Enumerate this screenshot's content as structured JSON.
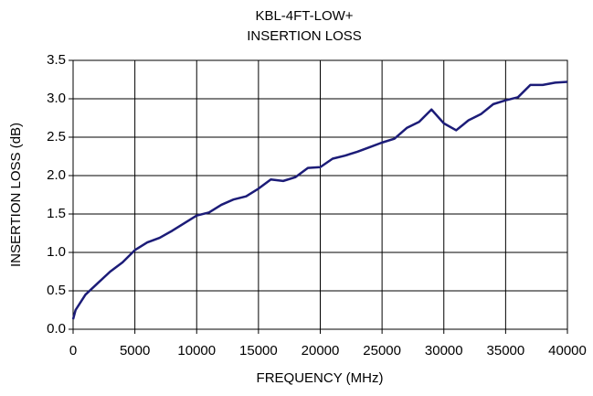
{
  "chart_data": {
    "type": "line",
    "title": "KBL-4FT-LOW+",
    "subtitle": "INSERTION LOSS",
    "xlabel": "FREQUENCY (MHz)",
    "ylabel": "INSERTION LOSS (dB)",
    "x": [
      0,
      200,
      1000,
      2000,
      3000,
      4000,
      5000,
      6000,
      7000,
      8000,
      9000,
      10000,
      11000,
      12000,
      13000,
      14000,
      15000,
      16000,
      17000,
      18000,
      19000,
      20000,
      21000,
      22000,
      23000,
      24000,
      25000,
      26000,
      27000,
      28000,
      29000,
      30000,
      31000,
      32000,
      33000,
      34000,
      35000,
      36000,
      37000,
      38000,
      39000,
      40000
    ],
    "series": [
      {
        "name": "INSERTION LOSS",
        "color": "#1c1c78",
        "values": [
          0.13,
          0.25,
          0.45,
          0.6,
          0.75,
          0.87,
          1.03,
          1.13,
          1.19,
          1.28,
          1.38,
          1.48,
          1.52,
          1.62,
          1.69,
          1.73,
          1.83,
          1.95,
          1.93,
          1.98,
          2.1,
          2.11,
          2.22,
          2.26,
          2.31,
          2.37,
          2.43,
          2.48,
          2.62,
          2.7,
          2.86,
          2.68,
          2.59,
          2.72,
          2.8,
          2.93,
          2.98,
          3.02,
          3.18,
          3.18,
          3.21,
          3.22
        ]
      }
    ],
    "xlim": [
      0,
      40000
    ],
    "xticks": [
      0,
      5000,
      10000,
      15000,
      20000,
      25000,
      30000,
      35000,
      40000
    ],
    "ylim": [
      0,
      3.5
    ],
    "yticks": [
      {
        "value": 0,
        "label": "0.0"
      },
      0.5,
      {
        "value": 1,
        "label": "1.0"
      },
      1.5,
      {
        "value": 2,
        "label": "2.0"
      },
      2.5,
      {
        "value": 3,
        "label": "3.0"
      },
      3.5
    ],
    "grid": true
  }
}
